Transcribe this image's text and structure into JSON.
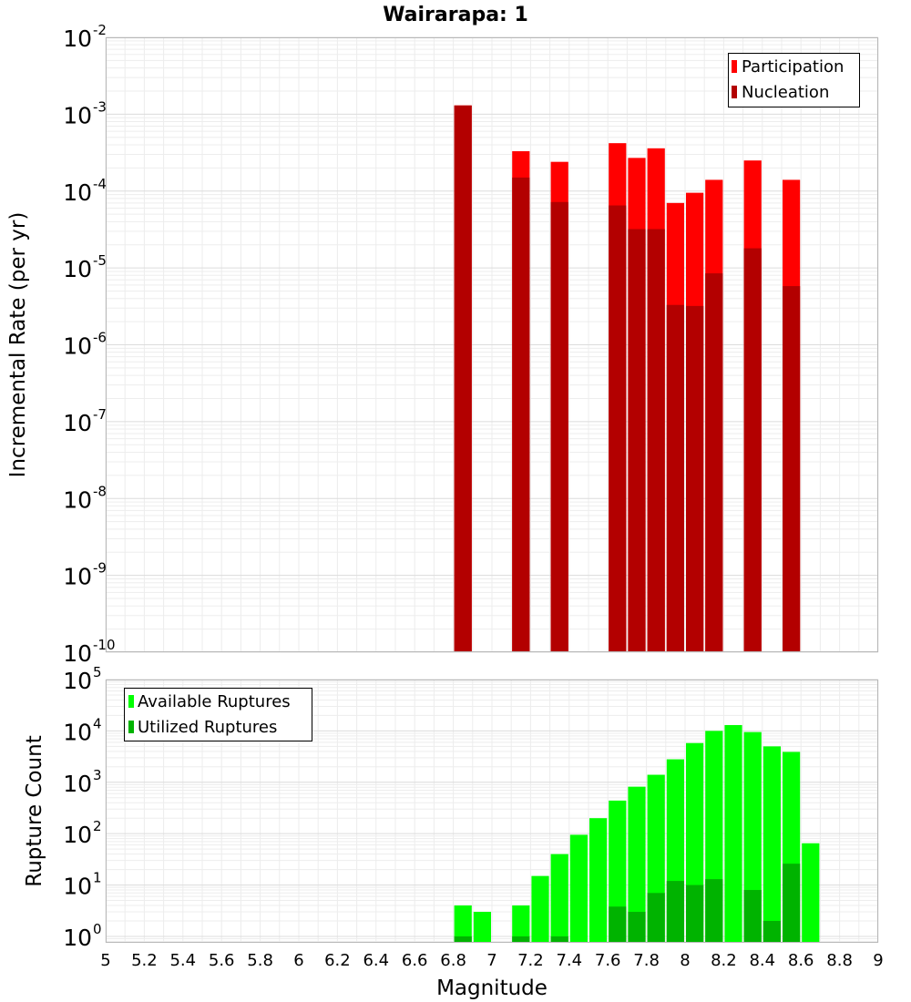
{
  "chart_data": [
    {
      "type": "bar",
      "title": "Wairarapa: 1",
      "ylabel": "Incremental Rate (per yr)",
      "xlim": [
        5,
        9
      ],
      "ylim": [
        1e-10,
        0.01
      ],
      "yscale": "log",
      "bar_width": 0.1,
      "grid": true,
      "legend_position": "top-right",
      "yticks": [
        {
          "base": "10",
          "exp": "-10"
        },
        {
          "base": "10",
          "exp": "-9"
        },
        {
          "base": "10",
          "exp": "-8"
        },
        {
          "base": "10",
          "exp": "-7"
        },
        {
          "base": "10",
          "exp": "-6"
        },
        {
          "base": "10",
          "exp": "-5"
        },
        {
          "base": "10",
          "exp": "-4"
        },
        {
          "base": "10",
          "exp": "-3"
        },
        {
          "base": "10",
          "exp": "-2"
        }
      ],
      "series": [
        {
          "name": "Participation",
          "color": "#ff0000",
          "points": [
            {
              "x": 6.85,
              "y": 0.0013
            },
            {
              "x": 7.15,
              "y": 0.00033
            },
            {
              "x": 7.35,
              "y": 0.00024
            },
            {
              "x": 7.65,
              "y": 0.00042
            },
            {
              "x": 7.75,
              "y": 0.00027
            },
            {
              "x": 7.85,
              "y": 0.00036
            },
            {
              "x": 7.95,
              "y": 7e-05
            },
            {
              "x": 8.05,
              "y": 9.5e-05
            },
            {
              "x": 8.15,
              "y": 0.00014
            },
            {
              "x": 8.35,
              "y": 0.00025
            },
            {
              "x": 8.55,
              "y": 0.00014
            }
          ]
        },
        {
          "name": "Nucleation",
          "color": "#b30000",
          "points": [
            {
              "x": 6.85,
              "y": 0.0013
            },
            {
              "x": 7.15,
              "y": 0.00015
            },
            {
              "x": 7.35,
              "y": 7.2e-05
            },
            {
              "x": 7.65,
              "y": 6.5e-05
            },
            {
              "x": 7.75,
              "y": 3.2e-05
            },
            {
              "x": 7.85,
              "y": 3.2e-05
            },
            {
              "x": 7.95,
              "y": 3.3e-06
            },
            {
              "x": 8.05,
              "y": 3.2e-06
            },
            {
              "x": 8.15,
              "y": 8.5e-06
            },
            {
              "x": 8.35,
              "y": 1.8e-05
            },
            {
              "x": 8.55,
              "y": 5.8e-06
            }
          ]
        }
      ]
    },
    {
      "type": "bar",
      "xlabel": "Magnitude",
      "ylabel": "Rupture Count",
      "xlim": [
        5,
        9
      ],
      "ylim": [
        0.75,
        100000.0
      ],
      "yscale": "log",
      "bar_width": 0.1,
      "grid": true,
      "legend_position": "top-left",
      "xticks": [
        "5",
        "5.2",
        "5.4",
        "5.6",
        "5.8",
        "6",
        "6.2",
        "6.4",
        "6.6",
        "6.8",
        "7",
        "7.2",
        "7.4",
        "7.6",
        "7.8",
        "8",
        "8.2",
        "8.4",
        "8.6",
        "8.8",
        "9"
      ],
      "yticks": [
        {
          "base": "10",
          "exp": "0"
        },
        {
          "base": "10",
          "exp": "1"
        },
        {
          "base": "10",
          "exp": "2"
        },
        {
          "base": "10",
          "exp": "3"
        },
        {
          "base": "10",
          "exp": "4"
        },
        {
          "base": "10",
          "exp": "5"
        }
      ],
      "series": [
        {
          "name": "Available Ruptures",
          "color": "#00ff00",
          "points": [
            {
              "x": 6.85,
              "y": 4
            },
            {
              "x": 6.95,
              "y": 3
            },
            {
              "x": 7.15,
              "y": 4
            },
            {
              "x": 7.25,
              "y": 15
            },
            {
              "x": 7.35,
              "y": 40
            },
            {
              "x": 7.45,
              "y": 95
            },
            {
              "x": 7.55,
              "y": 200
            },
            {
              "x": 7.65,
              "y": 440
            },
            {
              "x": 7.75,
              "y": 820
            },
            {
              "x": 7.85,
              "y": 1400
            },
            {
              "x": 7.95,
              "y": 2800
            },
            {
              "x": 8.05,
              "y": 5800
            },
            {
              "x": 8.15,
              "y": 10000
            },
            {
              "x": 8.25,
              "y": 13000
            },
            {
              "x": 8.35,
              "y": 9500
            },
            {
              "x": 8.45,
              "y": 5000
            },
            {
              "x": 8.55,
              "y": 3900
            },
            {
              "x": 8.65,
              "y": 65
            }
          ]
        },
        {
          "name": "Utilized Ruptures",
          "color": "#00b300",
          "points": [
            {
              "x": 6.85,
              "y": 1
            },
            {
              "x": 7.15,
              "y": 1
            },
            {
              "x": 7.35,
              "y": 1
            },
            {
              "x": 7.65,
              "y": 3.8
            },
            {
              "x": 7.75,
              "y": 3
            },
            {
              "x": 7.85,
              "y": 7
            },
            {
              "x": 7.95,
              "y": 12
            },
            {
              "x": 8.05,
              "y": 10
            },
            {
              "x": 8.15,
              "y": 13
            },
            {
              "x": 8.35,
              "y": 8
            },
            {
              "x": 8.45,
              "y": 2
            },
            {
              "x": 8.55,
              "y": 26
            }
          ]
        }
      ]
    }
  ]
}
